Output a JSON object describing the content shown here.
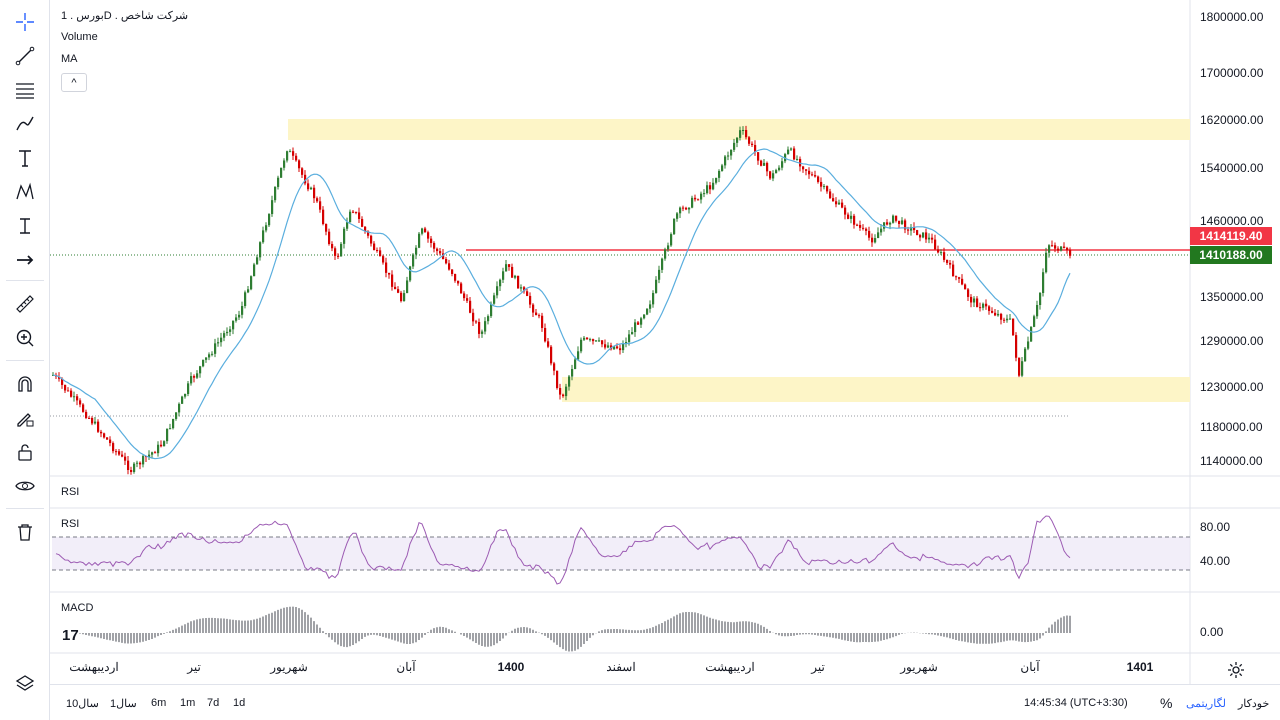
{
  "legend": {
    "symbol": "بورس . 1D . شرکت شاخص",
    "volume": "Volume",
    "ma": "MA",
    "collapse": "^"
  },
  "price_axis": {
    "ticks": [
      "1800000.00",
      "1700000.00",
      "1620000.00",
      "1540000.00",
      "1460000.00",
      "1350000.00",
      "1290000.00",
      "1230000.00",
      "1180000.00",
      "1140000.00"
    ],
    "alert_label": "1414119.40",
    "last_label": "1410188.00",
    "alert_color": "#f23645",
    "last_color": "#22781f"
  },
  "panes": {
    "rsi_title_1": "RSI",
    "rsi_title_2": "RSI",
    "rsi_ticks": [
      "80.00",
      "40.00"
    ],
    "macd_title": "MACD",
    "macd_tick": "0.00"
  },
  "time_axis": {
    "labels": [
      "اردیبهشت",
      "تیر",
      "شهریور",
      "آبان",
      "1400",
      "اسفند",
      "اردیبهشت",
      "تیر",
      "شهریور",
      "آبان",
      "1401"
    ]
  },
  "bottom_bar": {
    "ranges": [
      "10سال",
      "1سال",
      "6m",
      "1m",
      "7d",
      "1d"
    ],
    "time": "14:45:34 (UTC+3:30)",
    "percent": "%",
    "log": "لگاریتمی",
    "auto": "خودکار"
  },
  "colors": {
    "up": "#2e7d32",
    "down": "#d50000",
    "ma": "#5aaede",
    "rsi": "#9c5bb3",
    "zone": "#fdf5c7"
  }
}
